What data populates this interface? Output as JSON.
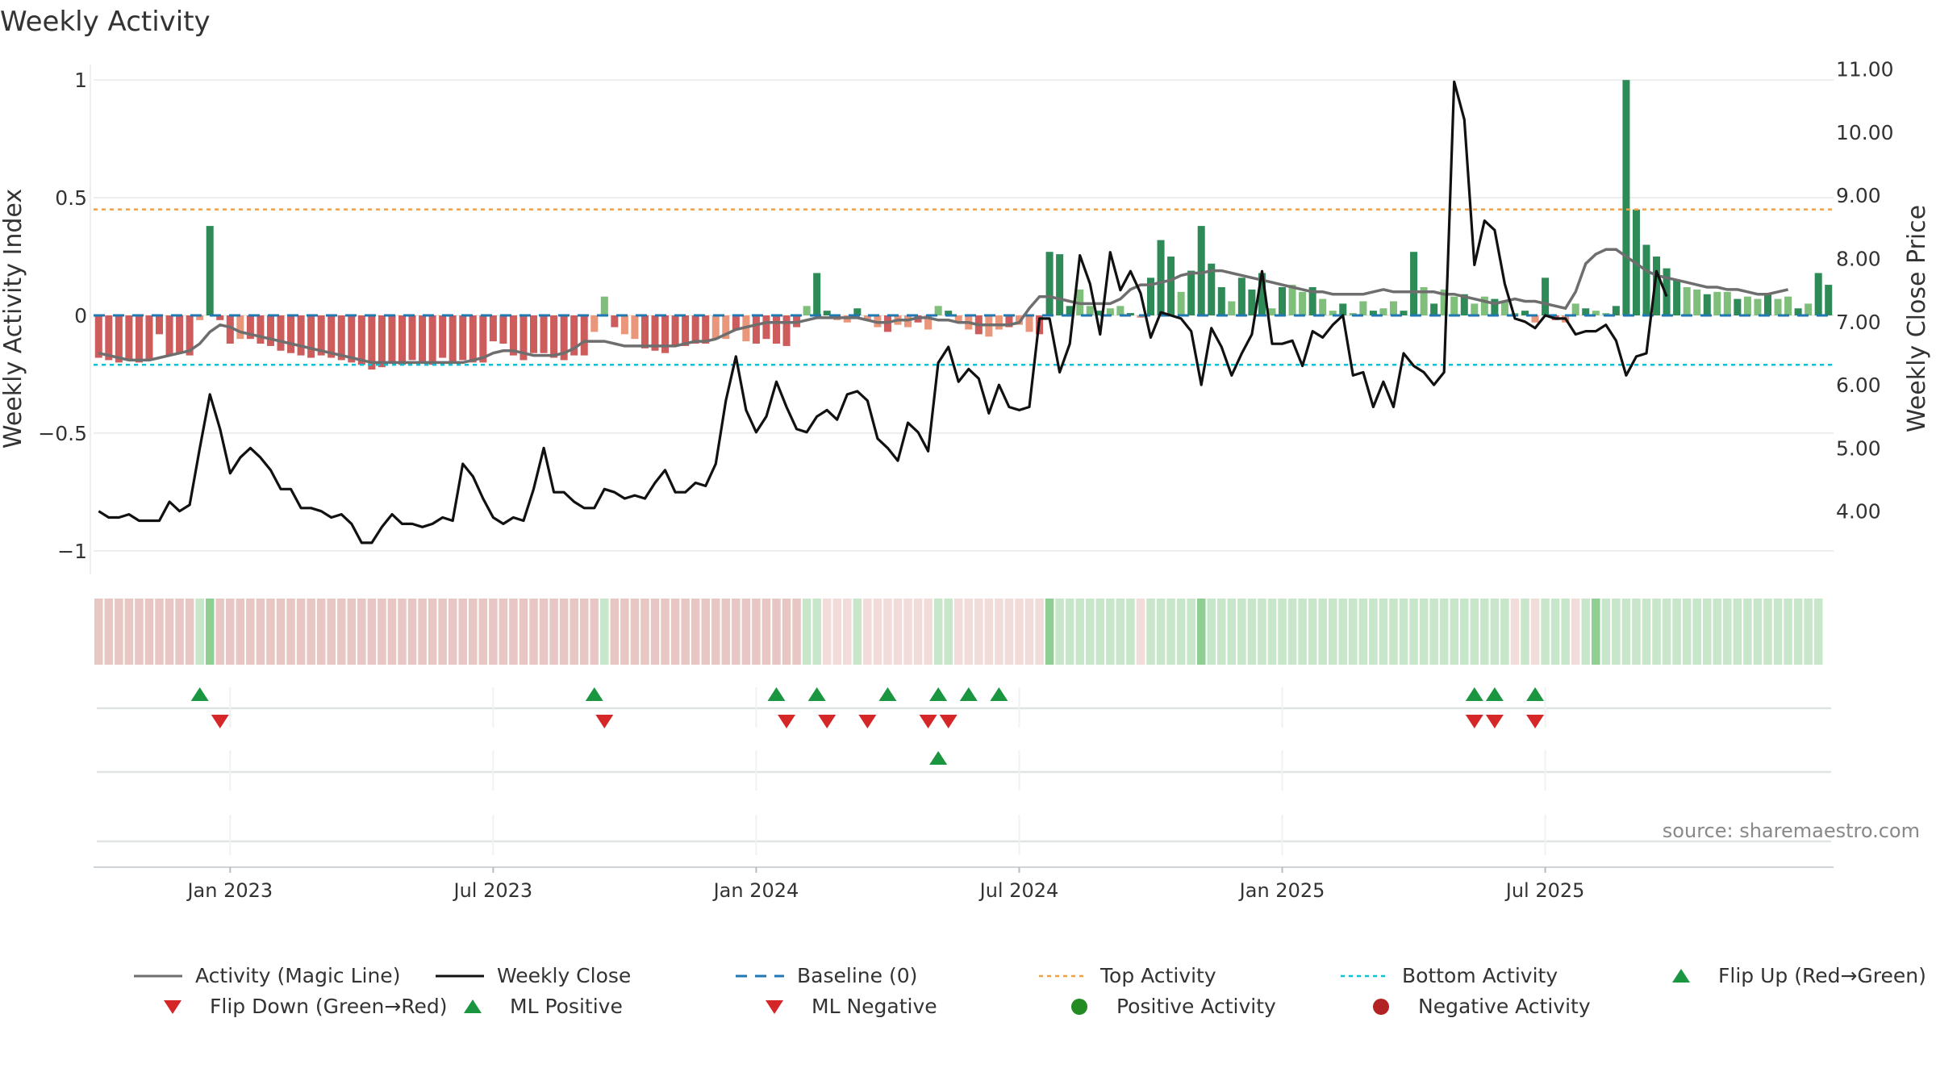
{
  "title": "Weekly Activity",
  "source": "source: sharemaestro.com",
  "colors": {
    "magic_line": "#6e6e6e",
    "close": "#111111",
    "baseline": "#1f77b4",
    "top": "#e9a252",
    "bottom": "#17becf",
    "green_strong": "#2e8b57",
    "green_light": "#7fbf7b",
    "red_strong": "#cd5c5c",
    "red_light": "#e9967a",
    "marker_up": "#1a9641",
    "marker_down": "#d62728",
    "pos_dot": "#228b22",
    "neg_dot": "#b22222"
  },
  "legend": [
    {
      "key": "magic",
      "label": "Activity (Magic Line)",
      "icon": "line-solid-gray"
    },
    {
      "key": "close",
      "label": "Weekly Close",
      "icon": "line-solid-black"
    },
    {
      "key": "baseline",
      "label": "Baseline (0)",
      "icon": "line-dashed-blue"
    },
    {
      "key": "top",
      "label": "Top Activity",
      "icon": "line-dotted-orange"
    },
    {
      "key": "bottom",
      "label": "Bottom Activity",
      "icon": "line-dotted-cyan"
    },
    {
      "key": "flipup",
      "label": "Flip Up (Red→Green)",
      "icon": "triangle-up-green"
    },
    {
      "key": "flipdown",
      "label": "Flip Down (Green→Red)",
      "icon": "triangle-down-red"
    },
    {
      "key": "mlpos",
      "label": "ML Positive",
      "icon": "triangle-up-green"
    },
    {
      "key": "mlneg",
      "label": "ML Negative",
      "icon": "triangle-down-red"
    },
    {
      "key": "posact",
      "label": "Positive Activity",
      "icon": "circle-green"
    },
    {
      "key": "negact",
      "label": "Negative Activity",
      "icon": "circle-darkred"
    }
  ],
  "chart_data": {
    "type": "bar",
    "title": "Weekly Activity",
    "start": "2022-10-03",
    "frequency": "weekly",
    "ylabel": "Weekly Activity Index",
    "ylabel_right": "Weekly Close Price",
    "ylim": [
      -1.1,
      1.1
    ],
    "ylim_right": [
      3.0,
      11.2
    ],
    "yticks": [
      {
        "v": 1,
        "label": "1"
      },
      {
        "v": 0.5,
        "label": "0.5"
      },
      {
        "v": 0,
        "label": "0"
      },
      {
        "v": -0.5,
        "label": "−0.5"
      },
      {
        "v": -1,
        "label": "−1"
      }
    ],
    "yticks_right": [
      {
        "v": 11,
        "label": "11.00"
      },
      {
        "v": 10,
        "label": "10.00"
      },
      {
        "v": 9,
        "label": "9.00"
      },
      {
        "v": 8,
        "label": "8.00"
      },
      {
        "v": 7,
        "label": "7.00"
      },
      {
        "v": 6,
        "label": "6.00"
      },
      {
        "v": 5,
        "label": "5.00"
      },
      {
        "v": 4,
        "label": "4.00"
      }
    ],
    "xticks": [
      {
        "week": 13,
        "label": "Jan 2023"
      },
      {
        "week": 39,
        "label": "Jul 2023"
      },
      {
        "week": 65,
        "label": "Jan 2024"
      },
      {
        "week": 91,
        "label": "Jul 2024"
      },
      {
        "week": 117,
        "label": "Jan 2025"
      },
      {
        "week": 143,
        "label": "Jul 2025"
      }
    ],
    "top_activity": 0.45,
    "bottom_activity": -0.21,
    "baseline": 0,
    "activity": [
      -0.18,
      -0.19,
      -0.2,
      -0.19,
      -0.2,
      -0.19,
      -0.08,
      -0.17,
      -0.16,
      -0.17,
      -0.02,
      0.38,
      -0.02,
      -0.12,
      -0.1,
      -0.1,
      -0.12,
      -0.13,
      -0.15,
      -0.16,
      -0.17,
      -0.18,
      -0.17,
      -0.18,
      -0.19,
      -0.2,
      -0.21,
      -0.23,
      -0.22,
      -0.2,
      -0.21,
      -0.19,
      -0.2,
      -0.21,
      -0.18,
      -0.2,
      -0.19,
      -0.2,
      -0.2,
      -0.11,
      -0.12,
      -0.17,
      -0.19,
      -0.16,
      -0.16,
      -0.18,
      -0.19,
      -0.17,
      -0.17,
      -0.07,
      0.08,
      -0.05,
      -0.08,
      -0.1,
      -0.14,
      -0.15,
      -0.16,
      -0.13,
      -0.13,
      -0.12,
      -0.12,
      -0.1,
      -0.1,
      -0.06,
      -0.11,
      -0.12,
      -0.1,
      -0.12,
      -0.13,
      -0.05,
      0.04,
      0.18,
      0.02,
      -0.02,
      -0.03,
      0.03,
      -0.02,
      -0.05,
      -0.07,
      -0.04,
      -0.05,
      -0.03,
      -0.06,
      0.04,
      0.02,
      -0.03,
      -0.06,
      -0.08,
      -0.09,
      -0.06,
      -0.05,
      -0.04,
      -0.07,
      -0.08,
      0.27,
      0.26,
      0.04,
      0.11,
      0.04,
      0.02,
      0.03,
      0.04,
      0.01,
      -0.01,
      0.16,
      0.32,
      0.25,
      0.1,
      0.19,
      0.38,
      0.22,
      0.12,
      0.06,
      0.16,
      0.11,
      0.18,
      0.03,
      0.12,
      0.13,
      0.1,
      0.12,
      0.07,
      0.02,
      0.05,
      0.01,
      0.06,
      0.02,
      0.03,
      0.06,
      0.02,
      0.27,
      0.12,
      0.05,
      0.11,
      0.08,
      0.09,
      0.05,
      0.08,
      0.07,
      0.06,
      0.01,
      0.02,
      -0.03,
      0.16,
      -0.02,
      -0.03,
      0.05,
      0.03,
      0.02,
      0.01,
      0.04,
      1.0,
      0.45,
      0.3,
      0.25,
      0.2,
      0.15,
      0.12,
      0.11,
      0.09,
      0.1,
      0.1,
      0.07,
      0.08,
      0.07,
      0.09,
      0.07,
      0.08,
      0.03,
      0.05,
      0.18,
      0.13
    ],
    "magic_line": [
      -0.16,
      -0.17,
      -0.18,
      -0.19,
      -0.19,
      -0.19,
      -0.18,
      -0.17,
      -0.16,
      -0.15,
      -0.12,
      -0.07,
      -0.04,
      -0.05,
      -0.07,
      -0.08,
      -0.09,
      -0.1,
      -0.11,
      -0.12,
      -0.13,
      -0.14,
      -0.15,
      -0.16,
      -0.17,
      -0.18,
      -0.19,
      -0.2,
      -0.2,
      -0.2,
      -0.2,
      -0.2,
      -0.2,
      -0.2,
      -0.2,
      -0.2,
      -0.2,
      -0.19,
      -0.18,
      -0.16,
      -0.15,
      -0.15,
      -0.16,
      -0.17,
      -0.17,
      -0.17,
      -0.16,
      -0.14,
      -0.11,
      -0.11,
      -0.11,
      -0.12,
      -0.13,
      -0.13,
      -0.13,
      -0.13,
      -0.13,
      -0.13,
      -0.12,
      -0.11,
      -0.11,
      -0.1,
      -0.08,
      -0.06,
      -0.05,
      -0.04,
      -0.03,
      -0.03,
      -0.03,
      -0.03,
      -0.02,
      -0.01,
      -0.01,
      -0.01,
      -0.01,
      -0.01,
      -0.02,
      -0.03,
      -0.03,
      -0.02,
      -0.02,
      -0.01,
      -0.01,
      -0.02,
      -0.02,
      -0.03,
      -0.03,
      -0.04,
      -0.04,
      -0.04,
      -0.04,
      -0.03,
      0.03,
      0.08,
      0.08,
      0.07,
      0.06,
      0.05,
      0.05,
      0.05,
      0.05,
      0.07,
      0.11,
      0.13,
      0.13,
      0.14,
      0.15,
      0.17,
      0.18,
      0.18,
      0.19,
      0.19,
      0.18,
      0.17,
      0.16,
      0.15,
      0.14,
      0.13,
      0.12,
      0.11,
      0.1,
      0.1,
      0.09,
      0.09,
      0.09,
      0.09,
      0.1,
      0.11,
      0.1,
      0.1,
      0.1,
      0.1,
      0.1,
      0.09,
      0.09,
      0.08,
      0.07,
      0.06,
      0.05,
      0.06,
      0.07,
      0.06,
      0.06,
      0.05,
      0.04,
      0.03,
      0.1,
      0.22,
      0.26,
      0.28,
      0.28,
      0.25,
      0.22,
      0.19,
      0.17,
      0.16,
      0.15,
      0.14,
      0.13,
      0.12,
      0.12,
      0.11,
      0.11,
      0.1,
      0.09,
      0.09,
      0.1,
      0.11
    ],
    "weekly_close": [
      4.0,
      3.9,
      3.9,
      3.95,
      3.85,
      3.85,
      3.85,
      4.15,
      4.0,
      4.1,
      5.0,
      5.85,
      5.3,
      4.6,
      4.85,
      5.0,
      4.85,
      4.65,
      4.35,
      4.35,
      4.05,
      4.05,
      4.0,
      3.9,
      3.95,
      3.8,
      3.5,
      3.5,
      3.75,
      3.95,
      3.8,
      3.8,
      3.75,
      3.8,
      3.9,
      3.85,
      4.75,
      4.55,
      4.2,
      3.9,
      3.8,
      3.9,
      3.85,
      4.35,
      5.0,
      4.3,
      4.3,
      4.15,
      4.05,
      4.05,
      4.35,
      4.3,
      4.2,
      4.25,
      4.2,
      4.45,
      4.65,
      4.3,
      4.3,
      4.45,
      4.4,
      4.75,
      5.75,
      6.45,
      5.6,
      5.25,
      5.5,
      6.05,
      5.65,
      5.3,
      5.25,
      5.5,
      5.6,
      5.45,
      5.85,
      5.9,
      5.75,
      5.15,
      5.0,
      4.8,
      5.4,
      5.25,
      4.95,
      6.35,
      6.6,
      6.05,
      6.25,
      6.1,
      5.55,
      6.0,
      5.65,
      5.6,
      5.65,
      7.05,
      7.05,
      6.2,
      6.65,
      8.05,
      7.6,
      6.8,
      8.1,
      7.5,
      7.8,
      7.45,
      6.75,
      7.15,
      7.1,
      7.05,
      6.85,
      6.0,
      6.9,
      6.6,
      6.15,
      6.5,
      6.8,
      7.8,
      6.65,
      6.65,
      6.7,
      6.3,
      6.85,
      6.75,
      6.95,
      7.1,
      6.15,
      6.2,
      5.65,
      6.05,
      5.65,
      6.5,
      6.3,
      6.2,
      6.0,
      6.2,
      10.8,
      10.2,
      7.9,
      8.6,
      8.45,
      7.6,
      7.05,
      7.0,
      6.9,
      7.1,
      7.05,
      7.05,
      6.8,
      6.85,
      6.85,
      6.95,
      6.7,
      6.15,
      6.45,
      6.5,
      7.8,
      7.4
    ],
    "strip_levels": [
      "r",
      "r",
      "r",
      "r",
      "r",
      "r",
      "r",
      "r",
      "r",
      "r",
      "g",
      "G",
      "r",
      "r",
      "r",
      "r",
      "r",
      "r",
      "r",
      "r",
      "r",
      "r",
      "r",
      "r",
      "r",
      "r",
      "r",
      "r",
      "r",
      "r",
      "r",
      "r",
      "r",
      "r",
      "r",
      "r",
      "r",
      "r",
      "r",
      "r",
      "r",
      "r",
      "r",
      "r",
      "r",
      "r",
      "r",
      "r",
      "r",
      "r",
      "g",
      "r",
      "r",
      "r",
      "r",
      "r",
      "r",
      "r",
      "r",
      "r",
      "r",
      "r",
      "r",
      "r",
      "r",
      "r",
      "r",
      "r",
      "r",
      "r",
      "g",
      "g",
      "p",
      "p",
      "p",
      "g",
      "p",
      "p",
      "p",
      "p",
      "p",
      "p",
      "p",
      "g",
      "g",
      "p",
      "p",
      "p",
      "p",
      "p",
      "p",
      "p",
      "p",
      "p",
      "G",
      "g",
      "g",
      "g",
      "g",
      "g",
      "g",
      "g",
      "g",
      "p",
      "g",
      "g",
      "g",
      "g",
      "g",
      "G",
      "g",
      "g",
      "g",
      "g",
      "g",
      "g",
      "g",
      "g",
      "g",
      "g",
      "g",
      "g",
      "g",
      "g",
      "g",
      "g",
      "g",
      "g",
      "g",
      "g",
      "g",
      "g",
      "g",
      "g",
      "g",
      "g",
      "g",
      "g",
      "g",
      "g",
      "p",
      "g",
      "p",
      "g",
      "g",
      "g",
      "p",
      "g",
      "G",
      "g",
      "g",
      "g",
      "g",
      "g",
      "g",
      "g",
      "g",
      "g",
      "g",
      "g",
      "g",
      "g",
      "g",
      "g",
      "g",
      "g",
      "g",
      "g",
      "g",
      "g",
      "g"
    ],
    "flip_up": [
      10,
      49,
      67,
      71,
      78,
      83,
      86,
      89,
      136,
      138,
      142
    ],
    "flip_down": [
      12,
      50,
      68,
      72,
      76,
      82,
      84,
      136,
      138,
      142
    ],
    "ml_positive": [
      83
    ],
    "ml_negative": []
  }
}
